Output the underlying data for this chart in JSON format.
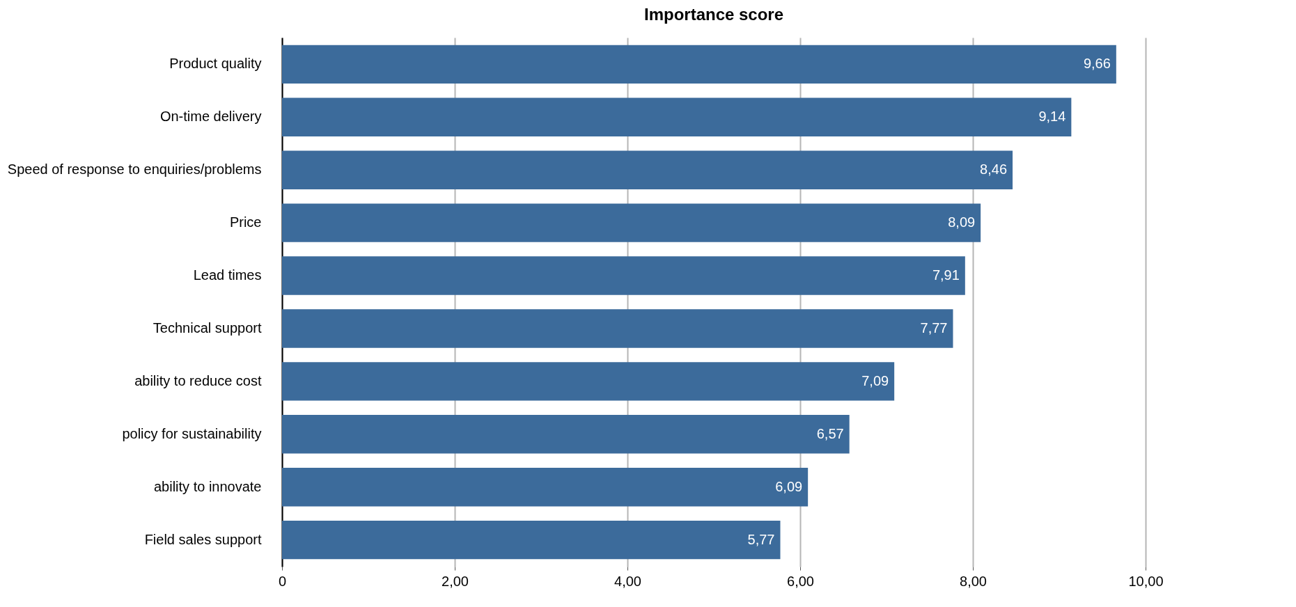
{
  "chart_data": {
    "type": "bar",
    "orientation": "horizontal",
    "title": "Importance score",
    "categories": [
      "Product quality",
      "On-time delivery",
      "Speed of response to enquiries/problems",
      "Price",
      "Lead times",
      "Technical support",
      "ability to reduce cost",
      "policy for sustainability",
      "ability to innovate",
      "Field sales support"
    ],
    "values": [
      9.66,
      9.14,
      8.46,
      8.09,
      7.91,
      7.77,
      7.09,
      6.57,
      6.09,
      5.77
    ],
    "value_labels": [
      "9,66",
      "9,14",
      "8,46",
      "8,09",
      "7,91",
      "7,77",
      "7,09",
      "6,57",
      "6,09",
      "5,77"
    ],
    "color": "#3c6b9b",
    "xlim": [
      0,
      10
    ],
    "xticks": [
      0,
      {
        "value": 2,
        "label": "2,00"
      },
      {
        "value": 4,
        "label": "4,00"
      },
      {
        "value": 6,
        "label": "6,00"
      },
      {
        "value": 8,
        "label": "8,00"
      },
      {
        "value": 10,
        "label": "10,00"
      }
    ],
    "grid": "x"
  }
}
